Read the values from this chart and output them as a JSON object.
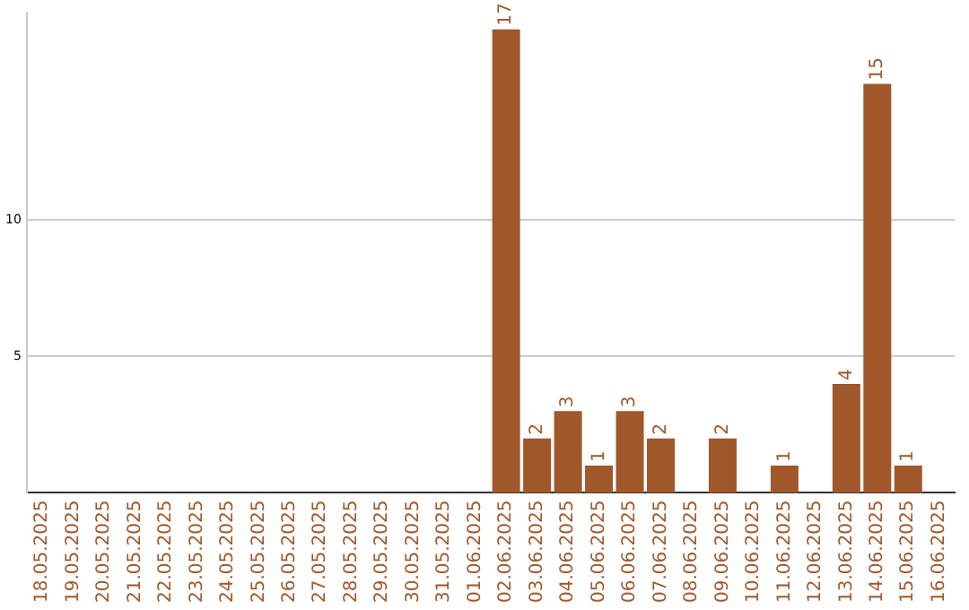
{
  "chart_data": {
    "type": "bar",
    "categories": [
      "18.05.2025",
      "19.05.2025",
      "20.05.2025",
      "21.05.2025",
      "22.05.2025",
      "23.05.2025",
      "24.05.2025",
      "25.05.2025",
      "26.05.2025",
      "27.05.2025",
      "28.05.2025",
      "29.05.2025",
      "30.05.2025",
      "31.05.2025",
      "01.06.2025",
      "02.06.2025",
      "03.06.2025",
      "04.06.2025",
      "05.06.2025",
      "06.06.2025",
      "07.06.2025",
      "08.06.2025",
      "09.06.2025",
      "10.06.2025",
      "11.06.2025",
      "12.06.2025",
      "13.06.2025",
      "14.06.2025",
      "15.06.2025",
      "16.06.2025"
    ],
    "values": [
      0,
      0,
      0,
      0,
      0,
      0,
      0,
      0,
      0,
      0,
      0,
      0,
      0,
      0,
      0,
      17,
      2,
      3,
      1,
      3,
      2,
      0,
      2,
      0,
      1,
      0,
      4,
      15,
      1,
      0
    ],
    "value_labels": [
      null,
      null,
      null,
      null,
      null,
      null,
      null,
      null,
      null,
      null,
      null,
      null,
      null,
      null,
      null,
      "17",
      "2",
      "3",
      "1",
      "3",
      "2",
      null,
      "2",
      null,
      "1",
      null,
      "4",
      "15",
      "1",
      null
    ],
    "color": "#a0582a",
    "ylim": [
      0,
      17.6
    ],
    "yticks": [
      5,
      10
    ],
    "grid": "y",
    "legend": false
  }
}
